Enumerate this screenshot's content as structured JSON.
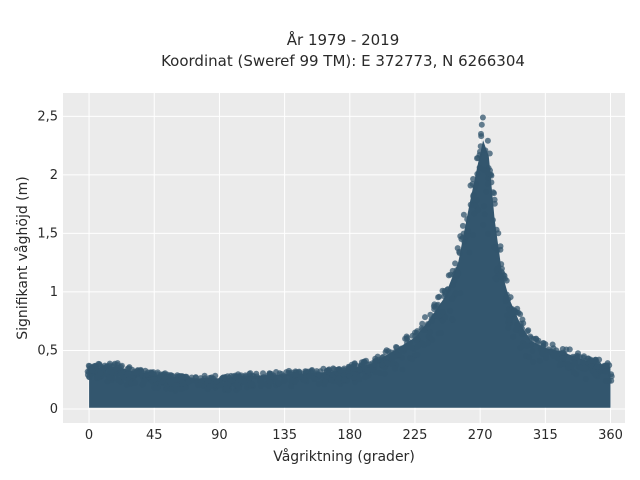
{
  "chart_data": {
    "type": "scatter",
    "title_line1": "År 1979 - 2019",
    "title_line2": "Koordinat (Sweref 99 TM): E 372773, N 6266304",
    "xlabel": "Vågriktning (grader)",
    "ylabel": "Signifikant våghöjd (m)",
    "xlim": [
      -18,
      370
    ],
    "ylim": [
      -0.12,
      2.7
    ],
    "x_ticks": [
      0,
      45,
      90,
      135,
      180,
      225,
      270,
      315,
      360
    ],
    "x_tick_labels": [
      "0",
      "45",
      "90",
      "135",
      "180",
      "225",
      "270",
      "315",
      "360"
    ],
    "y_ticks": [
      0,
      0.5,
      1,
      1.5,
      2,
      2.5
    ],
    "y_tick_labels": [
      "0",
      "0,5",
      "1",
      "1,5",
      "2",
      "2,5"
    ],
    "grid": true,
    "point_color": "#33566e",
    "envelope": {
      "direction_deg": [
        0,
        10,
        20,
        30,
        45,
        60,
        75,
        90,
        105,
        120,
        135,
        150,
        165,
        180,
        195,
        210,
        225,
        235,
        245,
        255,
        262,
        268,
        272,
        276,
        280,
        285,
        290,
        298,
        305,
        315,
        325,
        335,
        345,
        355,
        360
      ],
      "max_height_m": [
        0.38,
        0.4,
        0.4,
        0.36,
        0.33,
        0.3,
        0.29,
        0.29,
        0.31,
        0.32,
        0.33,
        0.34,
        0.35,
        0.38,
        0.43,
        0.55,
        0.68,
        0.85,
        1.05,
        1.4,
        1.9,
        2.3,
        2.55,
        2.4,
        1.8,
        1.3,
        1.05,
        0.8,
        0.65,
        0.58,
        0.55,
        0.5,
        0.45,
        0.42,
        0.4
      ],
      "min_height_m": 0.0
    }
  }
}
